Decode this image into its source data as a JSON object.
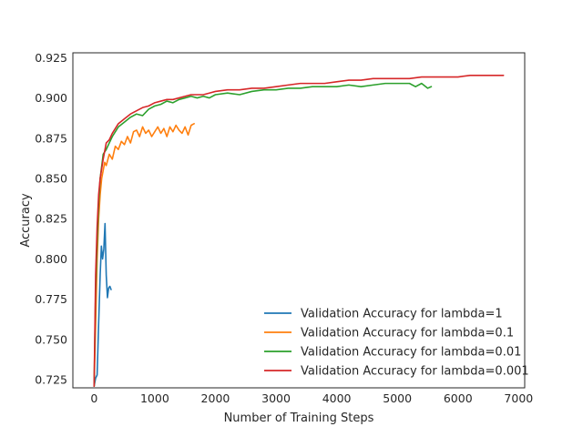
{
  "chart_data": {
    "type": "line",
    "title": "",
    "xlabel": "Number of Training Steps",
    "ylabel": "Accuracy",
    "xlim": [
      -350,
      7100
    ],
    "ylim": [
      0.72,
      0.928
    ],
    "xticks": [
      0,
      1000,
      2000,
      3000,
      4000,
      5000,
      6000,
      7000
    ],
    "xtick_labels": [
      "0",
      "1000",
      "2000",
      "3000",
      "4000",
      "5000",
      "6000",
      "7000"
    ],
    "yticks": [
      0.725,
      0.75,
      0.775,
      0.8,
      0.825,
      0.85,
      0.875,
      0.9,
      0.925
    ],
    "ytick_labels": [
      "0.725",
      "0.750",
      "0.775",
      "0.800",
      "0.825",
      "0.850",
      "0.875",
      "0.900",
      "0.925"
    ],
    "grid": false,
    "legend_position": "lower-right",
    "series": [
      {
        "name": "Validation Accuracy for lambda=1",
        "color": "#1f77b4",
        "x": [
          0,
          25,
          50,
          75,
          100,
          120,
          140,
          160,
          180,
          200,
          220,
          240,
          260,
          280
        ],
        "y": [
          0.721,
          0.726,
          0.728,
          0.76,
          0.79,
          0.808,
          0.8,
          0.806,
          0.822,
          0.79,
          0.776,
          0.782,
          0.783,
          0.781
        ]
      },
      {
        "name": "Validation Accuracy for lambda=0.1",
        "color": "#ff7f0e",
        "x": [
          0,
          25,
          50,
          75,
          100,
          125,
          150,
          175,
          200,
          250,
          300,
          350,
          400,
          450,
          500,
          550,
          600,
          650,
          700,
          750,
          800,
          850,
          900,
          950,
          1000,
          1050,
          1100,
          1150,
          1200,
          1250,
          1300,
          1350,
          1400,
          1450,
          1500,
          1550,
          1600,
          1650
        ],
        "y": [
          0.721,
          0.76,
          0.8,
          0.825,
          0.84,
          0.85,
          0.855,
          0.86,
          0.858,
          0.865,
          0.862,
          0.87,
          0.868,
          0.873,
          0.871,
          0.876,
          0.872,
          0.879,
          0.88,
          0.876,
          0.882,
          0.878,
          0.88,
          0.876,
          0.879,
          0.882,
          0.878,
          0.881,
          0.876,
          0.882,
          0.879,
          0.883,
          0.88,
          0.878,
          0.882,
          0.877,
          0.883,
          0.884
        ]
      },
      {
        "name": "Validation Accuracy for lambda=0.01",
        "color": "#2ca02c",
        "x": [
          0,
          25,
          50,
          75,
          100,
          150,
          200,
          250,
          300,
          400,
          500,
          600,
          700,
          800,
          900,
          1000,
          1100,
          1200,
          1300,
          1400,
          1500,
          1600,
          1700,
          1800,
          1900,
          2000,
          2200,
          2400,
          2600,
          2800,
          3000,
          3200,
          3400,
          3600,
          3800,
          4000,
          4200,
          4400,
          4600,
          4800,
          5000,
          5200,
          5300,
          5400,
          5500,
          5560
        ],
        "y": [
          0.721,
          0.78,
          0.81,
          0.835,
          0.85,
          0.865,
          0.868,
          0.872,
          0.876,
          0.882,
          0.885,
          0.888,
          0.89,
          0.889,
          0.893,
          0.895,
          0.896,
          0.898,
          0.897,
          0.899,
          0.9,
          0.901,
          0.9,
          0.901,
          0.9,
          0.902,
          0.903,
          0.902,
          0.904,
          0.905,
          0.905,
          0.906,
          0.906,
          0.907,
          0.907,
          0.907,
          0.908,
          0.907,
          0.908,
          0.909,
          0.909,
          0.909,
          0.907,
          0.909,
          0.906,
          0.907
        ]
      },
      {
        "name": "Validation Accuracy for lambda=0.001",
        "color": "#d62728",
        "x": [
          0,
          25,
          50,
          75,
          100,
          150,
          200,
          250,
          300,
          400,
          500,
          600,
          700,
          800,
          900,
          1000,
          1100,
          1200,
          1300,
          1400,
          1500,
          1600,
          1700,
          1800,
          1900,
          2000,
          2200,
          2400,
          2600,
          2800,
          3000,
          3200,
          3400,
          3600,
          3800,
          4000,
          4200,
          4400,
          4600,
          4800,
          5000,
          5200,
          5400,
          5600,
          5800,
          6000,
          6200,
          6400,
          6600,
          6750
        ],
        "y": [
          0.721,
          0.79,
          0.82,
          0.84,
          0.85,
          0.862,
          0.872,
          0.874,
          0.878,
          0.884,
          0.887,
          0.89,
          0.892,
          0.894,
          0.895,
          0.897,
          0.898,
          0.899,
          0.899,
          0.9,
          0.901,
          0.902,
          0.902,
          0.902,
          0.903,
          0.904,
          0.905,
          0.905,
          0.906,
          0.906,
          0.907,
          0.908,
          0.909,
          0.909,
          0.909,
          0.91,
          0.911,
          0.911,
          0.912,
          0.912,
          0.912,
          0.912,
          0.913,
          0.913,
          0.913,
          0.913,
          0.914,
          0.914,
          0.914,
          0.914
        ]
      }
    ]
  }
}
